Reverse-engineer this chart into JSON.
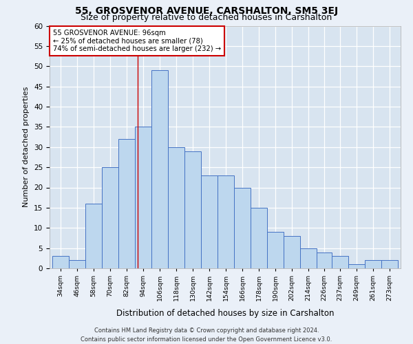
{
  "title": "55, GROSVENOR AVENUE, CARSHALTON, SM5 3EJ",
  "subtitle": "Size of property relative to detached houses in Carshalton",
  "xlabel": "Distribution of detached houses by size in Carshalton",
  "ylabel": "Number of detached properties",
  "footer_line1": "Contains HM Land Registry data © Crown copyright and database right 2024.",
  "footer_line2": "Contains public sector information licensed under the Open Government Licence v3.0.",
  "annotation_line1": "55 GROSVENOR AVENUE: 96sqm",
  "annotation_line2": "← 25% of detached houses are smaller (78)",
  "annotation_line3": "74% of semi-detached houses are larger (232) →",
  "bar_color": "#bdd7ee",
  "bar_edge_color": "#4472c4",
  "property_line_x": 96,
  "bins": [
    34,
    46,
    58,
    70,
    82,
    94,
    106,
    118,
    130,
    142,
    154,
    166,
    178,
    190,
    202,
    214,
    226,
    237,
    249,
    261,
    273
  ],
  "values": [
    3,
    2,
    16,
    25,
    32,
    35,
    49,
    30,
    29,
    23,
    23,
    20,
    15,
    9,
    8,
    5,
    4,
    3,
    1,
    2,
    2
  ],
  "xlabels": [
    "34sqm",
    "46sqm",
    "58sqm",
    "70sqm",
    "82sqm",
    "94sqm",
    "106sqm",
    "118sqm",
    "130sqm",
    "142sqm",
    "154sqm",
    "166sqm",
    "178sqm",
    "190sqm",
    "202sqm",
    "214sqm",
    "226sqm",
    "237sqm",
    "249sqm",
    "261sqm",
    "273sqm"
  ],
  "ylim": [
    0,
    60
  ],
  "yticks": [
    0,
    5,
    10,
    15,
    20,
    25,
    30,
    35,
    40,
    45,
    50,
    55,
    60
  ],
  "background_color": "#eaf0f8",
  "plot_background": "#d8e4f0",
  "grid_color": "#ffffff",
  "annotation_box_color": "#ffffff",
  "annotation_box_edge": "#cc0000",
  "red_line_color": "#cc0000",
  "title_fontsize": 10,
  "subtitle_fontsize": 9
}
